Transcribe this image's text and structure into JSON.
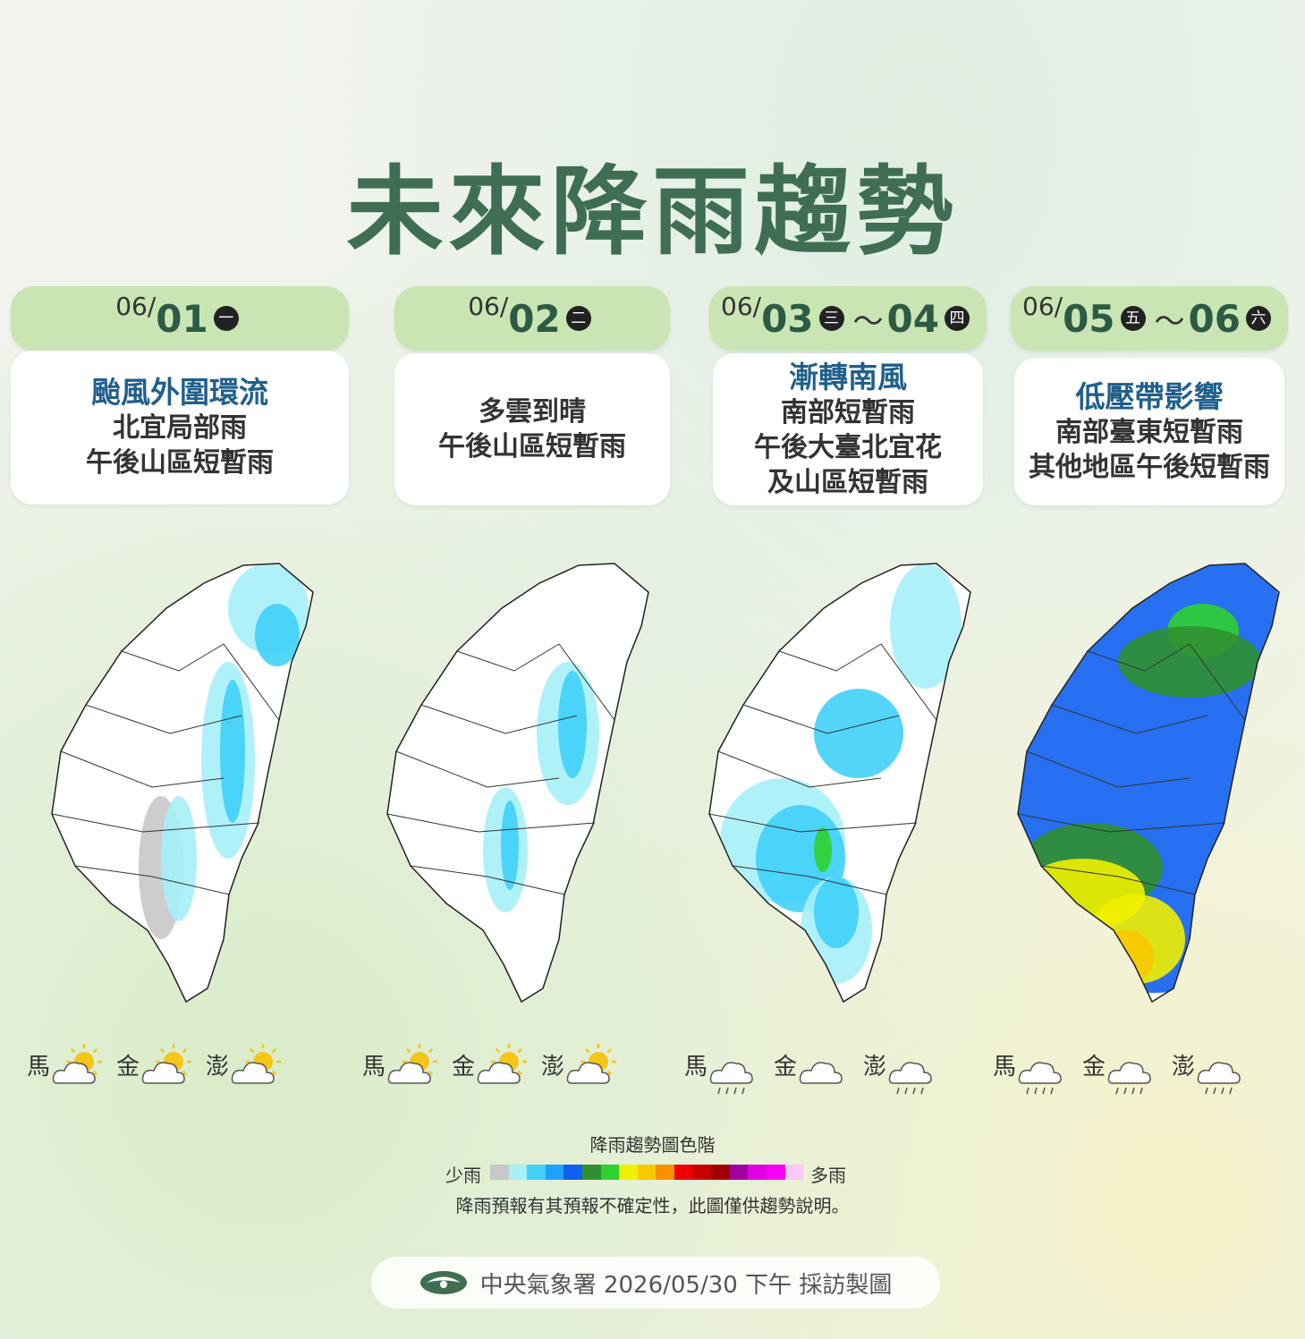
{
  "title": "未來降雨趨勢",
  "panels": [
    {
      "month": "06/",
      "days": [
        {
          "day": "01",
          "weekday": "一"
        }
      ],
      "headline": "颱風外圍環流",
      "lines": [
        "北宜局部雨",
        "午後山區短暫雨"
      ],
      "islands": [
        {
          "name": "馬",
          "icon": "sun-cloud"
        },
        {
          "name": "金",
          "icon": "sun-cloud"
        },
        {
          "name": "澎",
          "icon": "sun-cloud"
        }
      ]
    },
    {
      "month": "06/",
      "days": [
        {
          "day": "02",
          "weekday": "二"
        }
      ],
      "lines": [
        "多雲到晴",
        "午後山區短暫雨"
      ],
      "islands": [
        {
          "name": "馬",
          "icon": "sun-cloud"
        },
        {
          "name": "金",
          "icon": "sun-cloud"
        },
        {
          "name": "澎",
          "icon": "sun-cloud"
        }
      ]
    },
    {
      "month": "06/",
      "days": [
        {
          "day": "03",
          "weekday": "三"
        },
        {
          "day": "04",
          "weekday": "四"
        }
      ],
      "separator": "～",
      "headline": "漸轉南風",
      "lines": [
        "南部短暫雨",
        "午後大臺北宜花",
        "及山區短暫雨"
      ],
      "islands": [
        {
          "name": "馬",
          "icon": "rain"
        },
        {
          "name": "金",
          "icon": "cloud"
        },
        {
          "name": "澎",
          "icon": "rain"
        }
      ]
    },
    {
      "month": "06/",
      "days": [
        {
          "day": "05",
          "weekday": "五"
        },
        {
          "day": "06",
          "weekday": "六"
        }
      ],
      "separator": "～",
      "headline": "低壓帶影響",
      "lines": [
        "南部臺東短暫雨",
        "其他地區午後短暫雨"
      ],
      "islands": [
        {
          "name": "馬",
          "icon": "rain"
        },
        {
          "name": "金",
          "icon": "rain"
        },
        {
          "name": "澎",
          "icon": "rain"
        }
      ]
    }
  ],
  "legend": {
    "title": "降雨趨勢圖色階",
    "low": "少雨",
    "high": "多雨",
    "colors": [
      "#c8c8c8",
      "#a6f0f8",
      "#40d0f8",
      "#20a0f8",
      "#1060f0",
      "#309030",
      "#30d030",
      "#f0f000",
      "#f8c800",
      "#f89000",
      "#f00000",
      "#c80000",
      "#a00000",
      "#a000a0",
      "#e000e0",
      "#f800f8",
      "#f8c8f8"
    ],
    "note": "降雨預報有其預報不確定性，此圖僅供趨勢說明。"
  },
  "footer": "中央氣象署 2026/05/30 下午 採訪製圖"
}
